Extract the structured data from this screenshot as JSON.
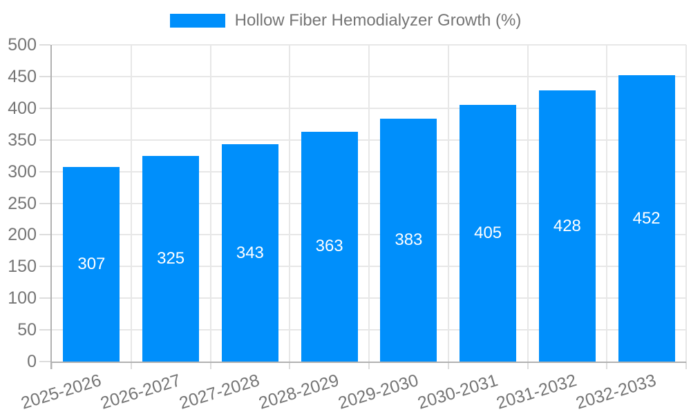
{
  "chart_data": {
    "type": "bar",
    "title": "Hollow Fiber Hemodialyzer Growth (%)",
    "categories": [
      "2025-2026",
      "2026-2027",
      "2027-2028",
      "2028-2029",
      "2029-2030",
      "2030-2031",
      "2031-2032",
      "2032-2033"
    ],
    "values": [
      307,
      325,
      343,
      363,
      383,
      405,
      428,
      452
    ],
    "xlabel": "",
    "ylabel": "",
    "ylim": [
      0,
      500
    ],
    "ytick_step": 50,
    "ytick_labels": [
      "0",
      "50",
      "100",
      "150",
      "200",
      "250",
      "300",
      "350",
      "400",
      "450",
      "500"
    ],
    "grid": true,
    "legend_position": "top",
    "bar_labels_inside": true,
    "colors": {
      "bar": "#008FFB",
      "bar_label": "#FFFFFF",
      "axis_text": "#757575",
      "legend_text": "#757575",
      "gridline": "#E7E7E7",
      "tick": "#DCDCDC",
      "axis_line": "#B1B1B1",
      "background": "#FFFFFF"
    }
  }
}
